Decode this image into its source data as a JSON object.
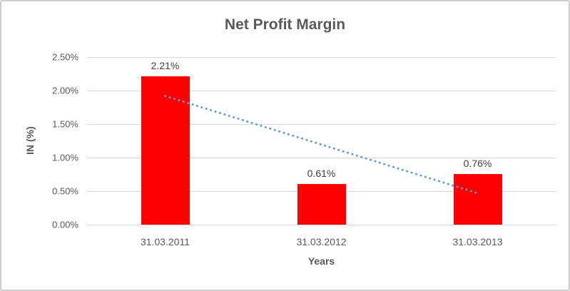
{
  "window": {
    "background": "#FFFFFF",
    "border_color": "#CDCDCD"
  },
  "chart_data": {
    "type": "bar",
    "title": "Net Profit Margin",
    "categories": [
      "31.03.2011",
      "31.03.2012",
      "31.03.2013"
    ],
    "values": [
      2.21,
      0.61,
      0.76
    ],
    "value_labels": [
      "2.21%",
      "0.61%",
      "0.76%"
    ],
    "xlabel": "Years",
    "ylabel": "IN (%)",
    "ylim": [
      0,
      2.5
    ],
    "ytick_values": [
      0,
      0.5,
      1.0,
      1.5,
      2.0,
      2.5
    ],
    "ytick_labels": [
      "0.00%",
      "0.50%",
      "1.00%",
      "1.50%",
      "2.00%",
      "2.50%"
    ],
    "grid": true,
    "legend": false,
    "bar_color": "#FF0000",
    "gridline_color": "#D9D9D9",
    "axis_text_color": "#595959",
    "data_label_color": "#404040",
    "trendline": {
      "type": "linear",
      "style": "dotted",
      "color": "#5B9BD5",
      "start_value": 1.92,
      "end_value": 0.47
    }
  }
}
